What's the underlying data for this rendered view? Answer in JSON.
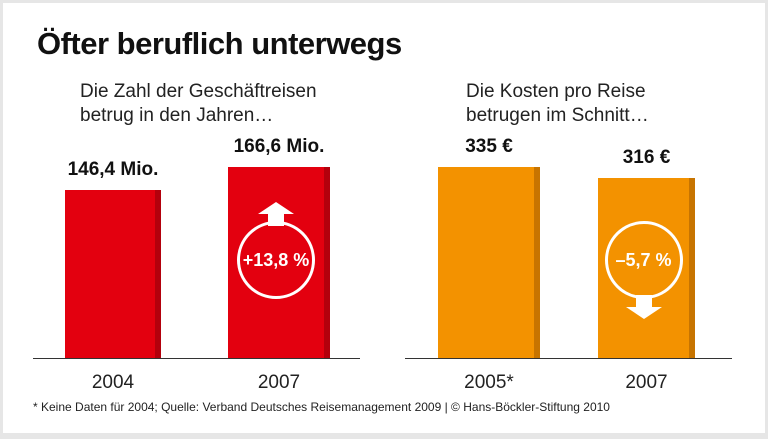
{
  "title": "Öfter beruflich unterwegs",
  "footnote": "* Keine Daten für 2004; Quelle: Verband Deutsches Reisemanagement 2009 | © Hans-Böckler-Stiftung 2010",
  "chart_data": [
    {
      "type": "bar",
      "subtitle": "Die Zahl der Geschäftreisen betrug in den Jahren…",
      "subtitle_lines": [
        "Die Zahl der Geschäftreisen",
        "betrug in den Jahren…"
      ],
      "categories": [
        "2004",
        "2007"
      ],
      "values": [
        146.4,
        166.6
      ],
      "labels": [
        "146,4 Mio.",
        "166,6 Mio."
      ],
      "color": "#e3000f",
      "side_color": "#b3000c",
      "annotation": {
        "text": "+13,8 %",
        "direction": "up",
        "bar": 1
      }
    },
    {
      "type": "bar",
      "subtitle": "Die Kosten pro Reise betrugen im Schnitt…",
      "subtitle_lines": [
        "Die Kosten pro Reise",
        "betrugen im Schnitt…"
      ],
      "categories": [
        "2005*",
        "2007"
      ],
      "values": [
        335,
        316
      ],
      "labels": [
        "335 €",
        "316 €"
      ],
      "color": "#f39200",
      "side_color": "#c77400",
      "annotation": {
        "text": "–5,7 %",
        "direction": "down",
        "bar": 1
      }
    }
  ]
}
